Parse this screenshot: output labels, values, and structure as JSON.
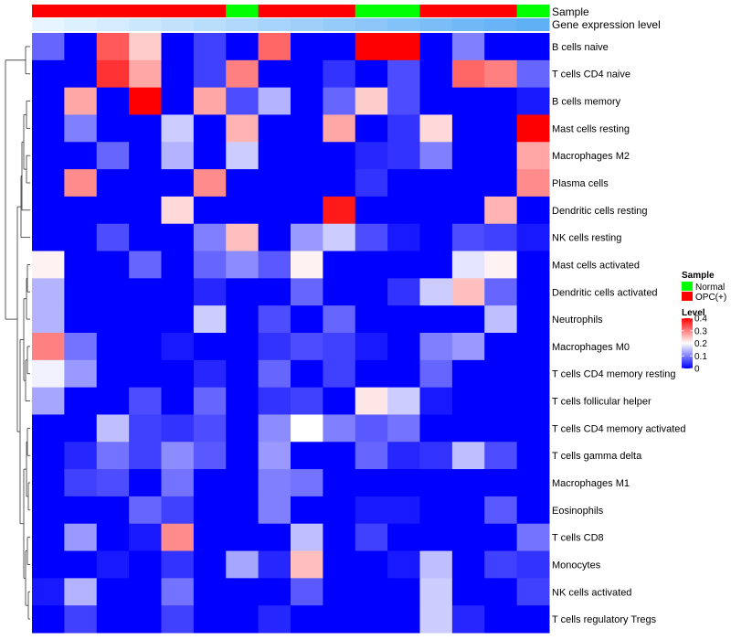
{
  "chart_data": {
    "type": "heatmap",
    "title": "",
    "annotation_labels": {
      "sample": "Sample",
      "expression": "Gene expression level"
    },
    "row_labels": [
      "B cells naive",
      "T cells CD4 naive",
      "B cells memory",
      "Mast cells resting",
      "Macrophages M2",
      "Plasma cells",
      "Dendritic cells resting",
      "NK cells resting",
      "Mast cells activated",
      "Dendritic cells activated",
      "Neutrophils",
      "Macrophages M0",
      "T cells CD4 memory resting",
      "T cells follicular helper",
      "T cells CD4 memory activated",
      "T cells gamma delta",
      "Macrophages M1",
      "Eosinophils",
      "T cells CD8",
      "Monocytes",
      "NK cells activated",
      "T cells regulatory  Tregs"
    ],
    "column_samples": [
      "OPC(+)",
      "OPC(+)",
      "OPC(+)",
      "OPC(+)",
      "OPC(+)",
      "OPC(+)",
      "Normal",
      "OPC(+)",
      "OPC(+)",
      "OPC(+)",
      "Normal",
      "Normal",
      "OPC(+)",
      "OPC(+)",
      "OPC(+)",
      "Normal"
    ],
    "column_expression": [
      0.02,
      0.04,
      0.06,
      0.08,
      0.1,
      0.12,
      0.14,
      0.16,
      0.18,
      0.2,
      0.22,
      0.24,
      0.26,
      0.28,
      0.3,
      0.32
    ],
    "values": [
      [
        0.08,
        0.0,
        0.33,
        0.24,
        0.0,
        0.05,
        0.0,
        0.32,
        0.0,
        0.0,
        0.4,
        0.4,
        0.0,
        0.1,
        0.0,
        0.0
      ],
      [
        0.0,
        0.0,
        0.36,
        0.27,
        0.0,
        0.05,
        0.3,
        0.0,
        0.0,
        0.04,
        0.0,
        0.06,
        0.0,
        0.32,
        0.3,
        0.08
      ],
      [
        0.0,
        0.27,
        0.0,
        0.4,
        0.0,
        0.27,
        0.06,
        0.14,
        0.0,
        0.08,
        0.24,
        0.06,
        0.0,
        0.0,
        0.0,
        0.02
      ],
      [
        0.0,
        0.1,
        0.0,
        0.0,
        0.16,
        0.0,
        0.26,
        0.0,
        0.0,
        0.27,
        0.0,
        0.04,
        0.23,
        0.0,
        0.0,
        0.4
      ],
      [
        0.0,
        0.0,
        0.08,
        0.0,
        0.14,
        0.0,
        0.16,
        0.0,
        0.0,
        0.0,
        0.03,
        0.04,
        0.1,
        0.0,
        0.0,
        0.27
      ],
      [
        0.0,
        0.29,
        0.0,
        0.0,
        0.0,
        0.29,
        0.0,
        0.0,
        0.0,
        0.0,
        0.04,
        0.0,
        0.0,
        0.0,
        0.0,
        0.29
      ],
      [
        0.0,
        0.0,
        0.0,
        0.0,
        0.23,
        0.0,
        0.0,
        0.0,
        0.0,
        0.38,
        0.0,
        0.0,
        0.0,
        0.0,
        0.26,
        0.0
      ],
      [
        0.0,
        0.0,
        0.06,
        0.0,
        0.0,
        0.1,
        0.25,
        0.0,
        0.12,
        0.16,
        0.06,
        0.02,
        0.0,
        0.06,
        0.05,
        0.02
      ],
      [
        0.21,
        0.0,
        0.0,
        0.08,
        0.0,
        0.08,
        0.11,
        0.07,
        0.21,
        0.0,
        0.0,
        0.0,
        0.0,
        0.18,
        0.21,
        0.0
      ],
      [
        0.14,
        0.0,
        0.0,
        0.0,
        0.0,
        0.03,
        0.0,
        0.0,
        0.08,
        0.0,
        0.0,
        0.04,
        0.16,
        0.25,
        0.08,
        0.0
      ],
      [
        0.14,
        0.0,
        0.0,
        0.0,
        0.0,
        0.16,
        0.0,
        0.06,
        0.0,
        0.08,
        0.0,
        0.0,
        0.0,
        0.0,
        0.15,
        0.0
      ],
      [
        0.3,
        0.09,
        0.0,
        0.0,
        0.02,
        0.0,
        0.0,
        0.04,
        0.06,
        0.05,
        0.02,
        0.0,
        0.1,
        0.12,
        0.0,
        0.0
      ],
      [
        0.19,
        0.12,
        0.0,
        0.0,
        0.0,
        0.03,
        0.0,
        0.08,
        0.0,
        0.05,
        0.0,
        0.0,
        0.08,
        0.0,
        0.0,
        0.0
      ],
      [
        0.13,
        0.0,
        0.0,
        0.06,
        0.0,
        0.08,
        0.0,
        0.04,
        0.05,
        0.0,
        0.22,
        0.16,
        0.02,
        0.0,
        0.0,
        0.0
      ],
      [
        0.0,
        0.0,
        0.15,
        0.05,
        0.04,
        0.06,
        0.0,
        0.11,
        0.2,
        0.1,
        0.07,
        0.09,
        0.0,
        0.0,
        0.0,
        0.0
      ],
      [
        0.0,
        0.03,
        0.09,
        0.05,
        0.11,
        0.07,
        0.0,
        0.12,
        0.0,
        0.0,
        0.08,
        0.03,
        0.04,
        0.15,
        0.06,
        0.0
      ],
      [
        0.0,
        0.05,
        0.06,
        0.0,
        0.09,
        0.0,
        0.0,
        0.1,
        0.09,
        0.0,
        0.0,
        0.0,
        0.0,
        0.0,
        0.0,
        0.0
      ],
      [
        0.0,
        0.0,
        0.0,
        0.08,
        0.05,
        0.0,
        0.0,
        0.1,
        0.0,
        0.0,
        0.02,
        0.02,
        0.0,
        0.0,
        0.07,
        0.0
      ],
      [
        0.0,
        0.12,
        0.0,
        0.02,
        0.29,
        0.0,
        0.0,
        0.0,
        0.15,
        0.0,
        0.05,
        0.0,
        0.0,
        0.0,
        0.0,
        0.09
      ],
      [
        0.0,
        0.0,
        0.02,
        0.0,
        0.04,
        0.0,
        0.13,
        0.03,
        0.25,
        0.0,
        0.0,
        0.02,
        0.15,
        0.0,
        0.05,
        0.04
      ],
      [
        0.02,
        0.14,
        0.0,
        0.0,
        0.09,
        0.0,
        0.0,
        0.0,
        0.07,
        0.0,
        0.0,
        0.0,
        0.16,
        0.0,
        0.0,
        0.05
      ],
      [
        0.0,
        0.05,
        0.0,
        0.0,
        0.05,
        0.0,
        0.0,
        0.03,
        0.0,
        0.0,
        0.0,
        0.0,
        0.16,
        0.03,
        0.0,
        0.0
      ]
    ],
    "color_scale": {
      "min": 0,
      "max": 0.4,
      "colors": [
        "#0000ff",
        "#ffffff",
        "#ff0000"
      ]
    },
    "legends": {
      "sample": {
        "title": "Sample",
        "entries": [
          {
            "label": "Normal",
            "color": "#00ff00"
          },
          {
            "label": "OPC(+)",
            "color": "#ff0000"
          }
        ]
      },
      "level": {
        "title": "Level",
        "ticks": [
          "0.4",
          "0.3",
          "0.2",
          "0.1",
          "0"
        ],
        "tick_values": [
          0.4,
          0.3,
          0.2,
          0.1,
          0
        ]
      }
    }
  }
}
